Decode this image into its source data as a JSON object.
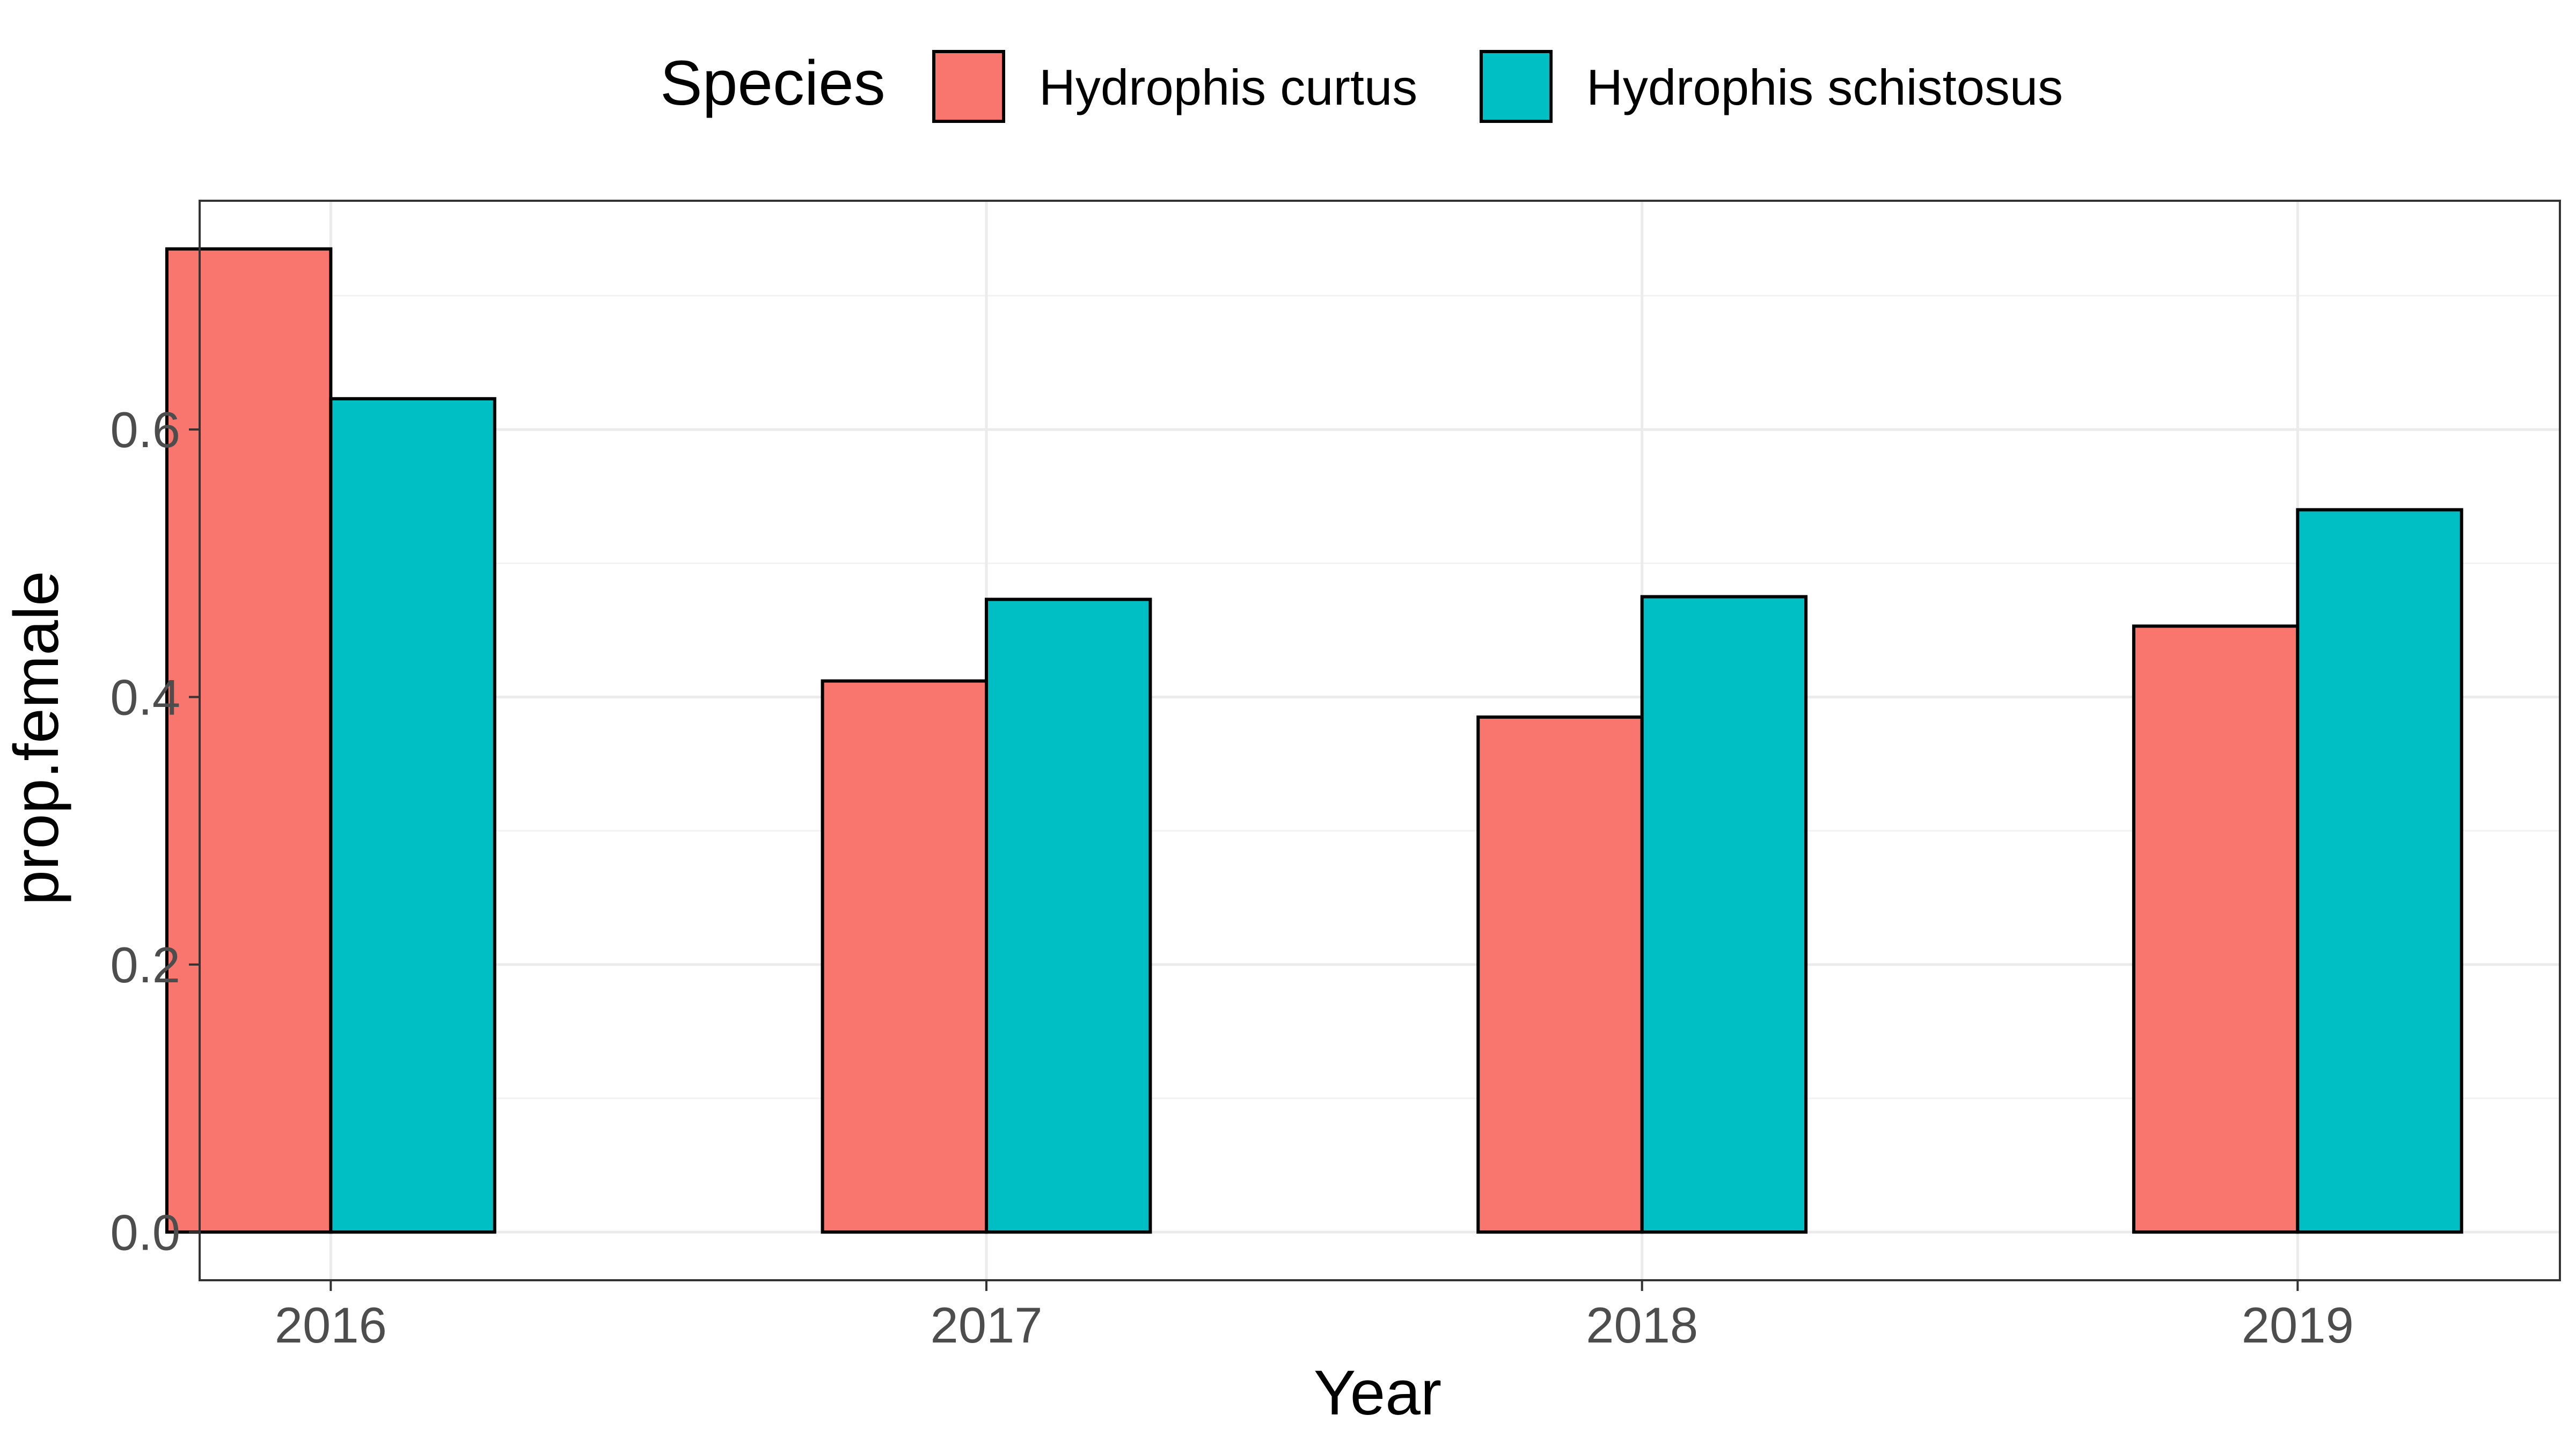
{
  "chart_data": {
    "type": "bar",
    "title": "",
    "xlabel": "Year",
    "ylabel": "prop.female",
    "categories": [
      "2016",
      "2017",
      "2018",
      "2019"
    ],
    "legend": {
      "title": "Species",
      "placement": "top"
    },
    "series": [
      {
        "name": "Hydrophis curtus",
        "color": "#F8766D",
        "values": [
          0.735,
          0.412,
          0.385,
          0.453
        ]
      },
      {
        "name": "Hydrophis schistosus",
        "color": "#00BFC4",
        "values": [
          0.623,
          0.473,
          0.475,
          0.54
        ]
      }
    ],
    "ylim": [
      -0.036,
      0.771
    ],
    "y_ticks": [
      {
        "value": 0.0,
        "label": "0.0"
      },
      {
        "value": 0.2,
        "label": "0.2"
      },
      {
        "value": 0.4,
        "label": "0.4"
      },
      {
        "value": 0.6,
        "label": "0.6"
      }
    ],
    "grid": true
  }
}
